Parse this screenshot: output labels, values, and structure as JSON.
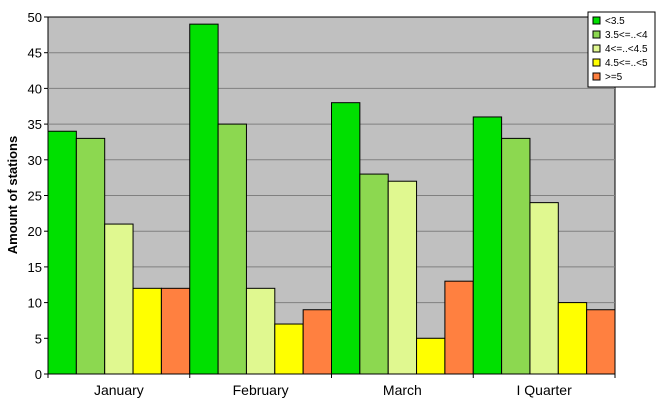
{
  "chart_data": {
    "type": "bar",
    "title": "",
    "xlabel": "",
    "ylabel": "Amount of stations",
    "ylim": [
      0,
      50
    ],
    "yticks": [
      0,
      5,
      10,
      15,
      20,
      25,
      30,
      35,
      40,
      45,
      50
    ],
    "grid": true,
    "legend_position": "top-right",
    "categories": [
      "January",
      "February",
      "March",
      "I Quarter"
    ],
    "series": [
      {
        "name": "<3.5",
        "color": "#00e000",
        "values": [
          34,
          49,
          38,
          36
        ]
      },
      {
        "name": "3.5<=..<4",
        "color": "#8cd850",
        "values": [
          33,
          35,
          28,
          33
        ]
      },
      {
        "name": "4<=..<4.5",
        "color": "#e0f890",
        "values": [
          21,
          12,
          27,
          24
        ]
      },
      {
        "name": "4.5<=..<5",
        "color": "#ffff00",
        "values": [
          12,
          7,
          5,
          10
        ]
      },
      {
        "name": ">=5",
        "color": "#ff8040",
        "values": [
          12,
          9,
          13,
          9
        ]
      }
    ],
    "plot_background": "#c0c0c0"
  }
}
